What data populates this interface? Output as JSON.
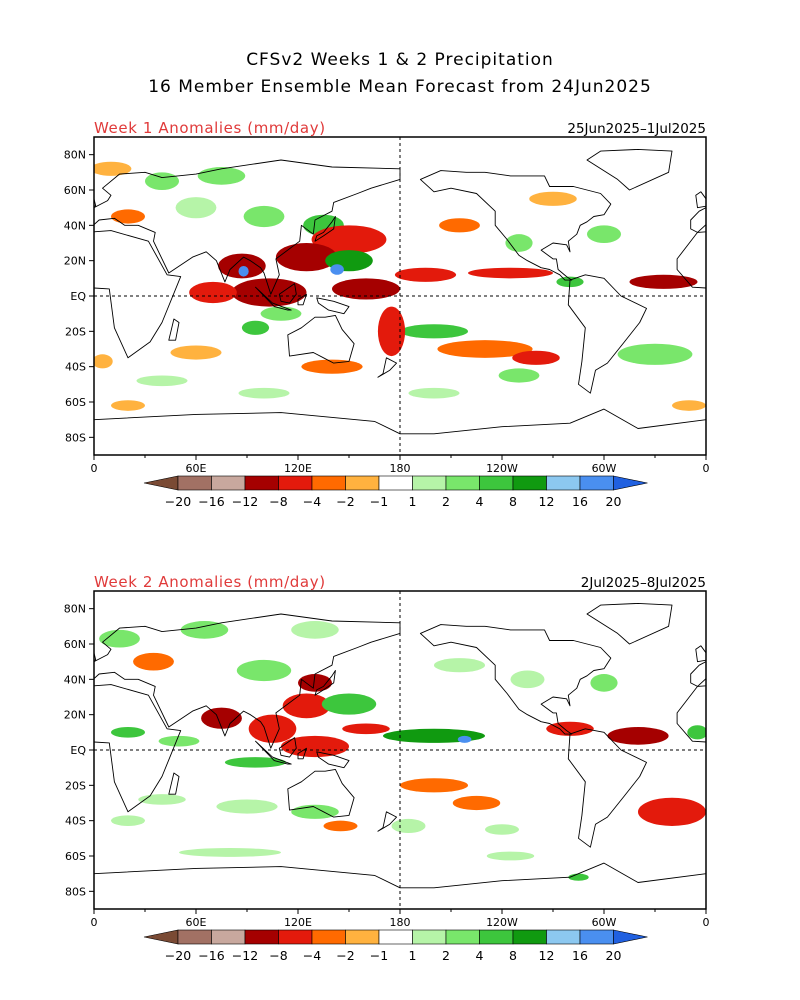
{
  "header": {
    "title_line1": "CFSv2 Weeks 1 & 2 Precipitation",
    "title_line2": "16 Member Ensemble Mean Forecast from 24Jun2025"
  },
  "panels": [
    {
      "title": "Week 1 Anomalies (mm/day)",
      "dates": "25Jun2025–1Jul2025",
      "anomaly_regions": [
        {
          "lon": 10,
          "lat": 72,
          "rx": 12,
          "ry": 4,
          "cat": "dry1"
        },
        {
          "lon": 40,
          "lat": 65,
          "rx": 10,
          "ry": 5,
          "cat": "wet2"
        },
        {
          "lon": 75,
          "lat": 68,
          "rx": 14,
          "ry": 5,
          "cat": "wet2"
        },
        {
          "lon": 60,
          "lat": 50,
          "rx": 12,
          "ry": 6,
          "cat": "wet1"
        },
        {
          "lon": 20,
          "lat": 45,
          "rx": 10,
          "ry": 4,
          "cat": "dry2"
        },
        {
          "lon": 100,
          "lat": 45,
          "rx": 12,
          "ry": 6,
          "cat": "wet2"
        },
        {
          "lon": 135,
          "lat": 40,
          "rx": 12,
          "ry": 6,
          "cat": "wet3"
        },
        {
          "lon": 150,
          "lat": 32,
          "rx": 22,
          "ry": 8,
          "cat": "dry3"
        },
        {
          "lon": 125,
          "lat": 22,
          "rx": 18,
          "ry": 8,
          "cat": "dry4"
        },
        {
          "lon": 150,
          "lat": 20,
          "rx": 14,
          "ry": 6,
          "cat": "wet4"
        },
        {
          "lon": 87,
          "lat": 17,
          "rx": 14,
          "ry": 7,
          "cat": "dry4"
        },
        {
          "lon": 88,
          "lat": 14,
          "rx": 3,
          "ry": 3,
          "cat": "wet6"
        },
        {
          "lon": 143,
          "lat": 15,
          "rx": 4,
          "ry": 3,
          "cat": "wet6"
        },
        {
          "lon": 103,
          "lat": 2,
          "rx": 22,
          "ry": 8,
          "cat": "dry4"
        },
        {
          "lon": 160,
          "lat": 4,
          "rx": 20,
          "ry": 6,
          "cat": "dry4"
        },
        {
          "lon": 70,
          "lat": 2,
          "rx": 14,
          "ry": 6,
          "cat": "dry3"
        },
        {
          "lon": 195,
          "lat": 12,
          "rx": 18,
          "ry": 4,
          "cat": "dry3"
        },
        {
          "lon": 245,
          "lat": 13,
          "rx": 25,
          "ry": 3,
          "cat": "dry3"
        },
        {
          "lon": 335,
          "lat": 8,
          "rx": 20,
          "ry": 4,
          "cat": "dry4"
        },
        {
          "lon": 280,
          "lat": 8,
          "rx": 8,
          "ry": 3,
          "cat": "wet3"
        },
        {
          "lon": 250,
          "lat": 30,
          "rx": 8,
          "ry": 5,
          "cat": "wet2"
        },
        {
          "lon": 300,
          "lat": 35,
          "rx": 10,
          "ry": 5,
          "cat": "wet2"
        },
        {
          "lon": 215,
          "lat": 40,
          "rx": 12,
          "ry": 4,
          "cat": "dry2"
        },
        {
          "lon": 270,
          "lat": 55,
          "rx": 14,
          "ry": 4,
          "cat": "dry1"
        },
        {
          "lon": 95,
          "lat": -18,
          "rx": 8,
          "ry": 4,
          "cat": "wet3"
        },
        {
          "lon": 110,
          "lat": -10,
          "rx": 12,
          "ry": 4,
          "cat": "wet2"
        },
        {
          "lon": 200,
          "lat": -20,
          "rx": 20,
          "ry": 4,
          "cat": "wet3"
        },
        {
          "lon": 175,
          "lat": -20,
          "rx": 8,
          "ry": 14,
          "cat": "dry3"
        },
        {
          "lon": 230,
          "lat": -30,
          "rx": 28,
          "ry": 5,
          "cat": "dry2"
        },
        {
          "lon": 260,
          "lat": -35,
          "rx": 14,
          "ry": 4,
          "cat": "dry3"
        },
        {
          "lon": 330,
          "lat": -33,
          "rx": 22,
          "ry": 6,
          "cat": "wet2"
        },
        {
          "lon": 5,
          "lat": -37,
          "rx": 6,
          "ry": 4,
          "cat": "dry1"
        },
        {
          "lon": 60,
          "lat": -32,
          "rx": 15,
          "ry": 4,
          "cat": "dry1"
        },
        {
          "lon": 140,
          "lat": -40,
          "rx": 18,
          "ry": 4,
          "cat": "dry2"
        },
        {
          "lon": 250,
          "lat": -45,
          "rx": 12,
          "ry": 4,
          "cat": "wet2"
        },
        {
          "lon": 40,
          "lat": -48,
          "rx": 15,
          "ry": 3,
          "cat": "wet1"
        },
        {
          "lon": 100,
          "lat": -55,
          "rx": 15,
          "ry": 3,
          "cat": "wet1"
        },
        {
          "lon": 200,
          "lat": -55,
          "rx": 15,
          "ry": 3,
          "cat": "wet1"
        },
        {
          "lon": 350,
          "lat": -62,
          "rx": 10,
          "ry": 3,
          "cat": "dry1"
        },
        {
          "lon": 20,
          "lat": -62,
          "rx": 10,
          "ry": 3,
          "cat": "dry1"
        }
      ]
    },
    {
      "title": "Week 2 Anomalies (mm/day)",
      "dates": "2Jul2025–8Jul2025",
      "anomaly_regions": [
        {
          "lon": 15,
          "lat": 63,
          "rx": 12,
          "ry": 5,
          "cat": "wet2"
        },
        {
          "lon": 65,
          "lat": 68,
          "rx": 14,
          "ry": 5,
          "cat": "wet2"
        },
        {
          "lon": 130,
          "lat": 68,
          "rx": 14,
          "ry": 5,
          "cat": "wet1"
        },
        {
          "lon": 35,
          "lat": 50,
          "rx": 12,
          "ry": 5,
          "cat": "dry2"
        },
        {
          "lon": 100,
          "lat": 45,
          "rx": 16,
          "ry": 6,
          "cat": "wet2"
        },
        {
          "lon": 130,
          "lat": 38,
          "rx": 10,
          "ry": 5,
          "cat": "dry4"
        },
        {
          "lon": 125,
          "lat": 25,
          "rx": 14,
          "ry": 7,
          "cat": "dry3"
        },
        {
          "lon": 150,
          "lat": 26,
          "rx": 16,
          "ry": 6,
          "cat": "wet3"
        },
        {
          "lon": 75,
          "lat": 18,
          "rx": 12,
          "ry": 6,
          "cat": "dry4"
        },
        {
          "lon": 105,
          "lat": 12,
          "rx": 14,
          "ry": 8,
          "cat": "dry3"
        },
        {
          "lon": 130,
          "lat": 2,
          "rx": 20,
          "ry": 6,
          "cat": "dry3"
        },
        {
          "lon": 200,
          "lat": 8,
          "rx": 30,
          "ry": 4,
          "cat": "wet4"
        },
        {
          "lon": 218,
          "lat": 6,
          "rx": 4,
          "ry": 2,
          "cat": "wet6"
        },
        {
          "lon": 160,
          "lat": 12,
          "rx": 14,
          "ry": 3,
          "cat": "dry3"
        },
        {
          "lon": 280,
          "lat": 12,
          "rx": 14,
          "ry": 4,
          "cat": "dry3"
        },
        {
          "lon": 320,
          "lat": 8,
          "rx": 18,
          "ry": 5,
          "cat": "dry4"
        },
        {
          "lon": 355,
          "lat": 10,
          "rx": 6,
          "ry": 4,
          "cat": "wet3"
        },
        {
          "lon": 20,
          "lat": 10,
          "rx": 10,
          "ry": 3,
          "cat": "wet3"
        },
        {
          "lon": 50,
          "lat": 5,
          "rx": 12,
          "ry": 3,
          "cat": "wet2"
        },
        {
          "lon": 95,
          "lat": -7,
          "rx": 18,
          "ry": 3,
          "cat": "wet3"
        },
        {
          "lon": 215,
          "lat": 48,
          "rx": 15,
          "ry": 4,
          "cat": "wet1"
        },
        {
          "lon": 255,
          "lat": 40,
          "rx": 10,
          "ry": 5,
          "cat": "wet1"
        },
        {
          "lon": 300,
          "lat": 38,
          "rx": 8,
          "ry": 5,
          "cat": "wet2"
        },
        {
          "lon": 200,
          "lat": -20,
          "rx": 20,
          "ry": 4,
          "cat": "dry2"
        },
        {
          "lon": 225,
          "lat": -30,
          "rx": 14,
          "ry": 4,
          "cat": "dry2"
        },
        {
          "lon": 340,
          "lat": -35,
          "rx": 20,
          "ry": 8,
          "cat": "dry3"
        },
        {
          "lon": 130,
          "lat": -35,
          "rx": 14,
          "ry": 4,
          "cat": "wet2"
        },
        {
          "lon": 90,
          "lat": -32,
          "rx": 18,
          "ry": 4,
          "cat": "wet1"
        },
        {
          "lon": 145,
          "lat": -43,
          "rx": 10,
          "ry": 3,
          "cat": "dry2"
        },
        {
          "lon": 40,
          "lat": -28,
          "rx": 14,
          "ry": 3,
          "cat": "wet1"
        },
        {
          "lon": 20,
          "lat": -40,
          "rx": 10,
          "ry": 3,
          "cat": "wet1"
        },
        {
          "lon": 185,
          "lat": -43,
          "rx": 10,
          "ry": 4,
          "cat": "wet1"
        },
        {
          "lon": 240,
          "lat": -45,
          "rx": 10,
          "ry": 3,
          "cat": "wet1"
        },
        {
          "lon": 80,
          "lat": -58,
          "rx": 30,
          "ry": 2.5,
          "cat": "wet1"
        },
        {
          "lon": 245,
          "lat": -60,
          "rx": 14,
          "ry": 2.5,
          "cat": "wet1"
        },
        {
          "lon": 285,
          "lat": -72,
          "rx": 6,
          "ry": 2,
          "cat": "wet3"
        }
      ]
    }
  ],
  "axes": {
    "x_ticks": [
      {
        "lon": 0,
        "label": "0"
      },
      {
        "lon": 60,
        "label": "60E"
      },
      {
        "lon": 120,
        "label": "120E"
      },
      {
        "lon": 180,
        "label": "180"
      },
      {
        "lon": 240,
        "label": "120W"
      },
      {
        "lon": 300,
        "label": "60W"
      },
      {
        "lon": 360,
        "label": "0"
      }
    ],
    "y_ticks": [
      {
        "lat": 80,
        "label": "80N"
      },
      {
        "lat": 60,
        "label": "60N"
      },
      {
        "lat": 40,
        "label": "40N"
      },
      {
        "lat": 20,
        "label": "20N"
      },
      {
        "lat": 0,
        "label": "EQ"
      },
      {
        "lat": -20,
        "label": "20S"
      },
      {
        "lat": -40,
        "label": "40S"
      },
      {
        "lat": -60,
        "label": "60S"
      },
      {
        "lat": -80,
        "label": "80S"
      }
    ]
  },
  "colorbar": {
    "colors": {
      "dry6": "#7a4a34",
      "dry5": "#a27164",
      "dry4": "#c8a89e",
      "dry3": "#a50000",
      "dry2": "#e31a0c",
      "dry1": "#ff6a00",
      "dry0": "#ffb23f",
      "neutral": "#ffffff",
      "wet0": "#b6f4a8",
      "wet1": "#79e66b",
      "wet2": "#3dc63d",
      "wet3": "#109a10",
      "wet4": "#8cc8f0",
      "wet5": "#4a8ff0",
      "wet6": "#2060e0"
    },
    "boxes": [
      "dry5",
      "dry4",
      "dry3",
      "dry2",
      "dry1",
      "dry0",
      "neutral",
      "wet0",
      "wet1",
      "wet2",
      "wet3",
      "wet4",
      "wet5"
    ],
    "labels": [
      "−20",
      "−16",
      "−12",
      "−8",
      "−4",
      "−2",
      "−1",
      "1",
      "2",
      "4",
      "8",
      "12",
      "16",
      "20"
    ],
    "region_colors": {
      "dry1": "#ffb23f",
      "dry2": "#ff6a00",
      "dry3": "#e31a0c",
      "dry4": "#a50000",
      "wet1": "#b6f4a8",
      "wet2": "#79e66b",
      "wet3": "#3dc63d",
      "wet4": "#109a10",
      "wet6": "#4a8ff0"
    }
  }
}
